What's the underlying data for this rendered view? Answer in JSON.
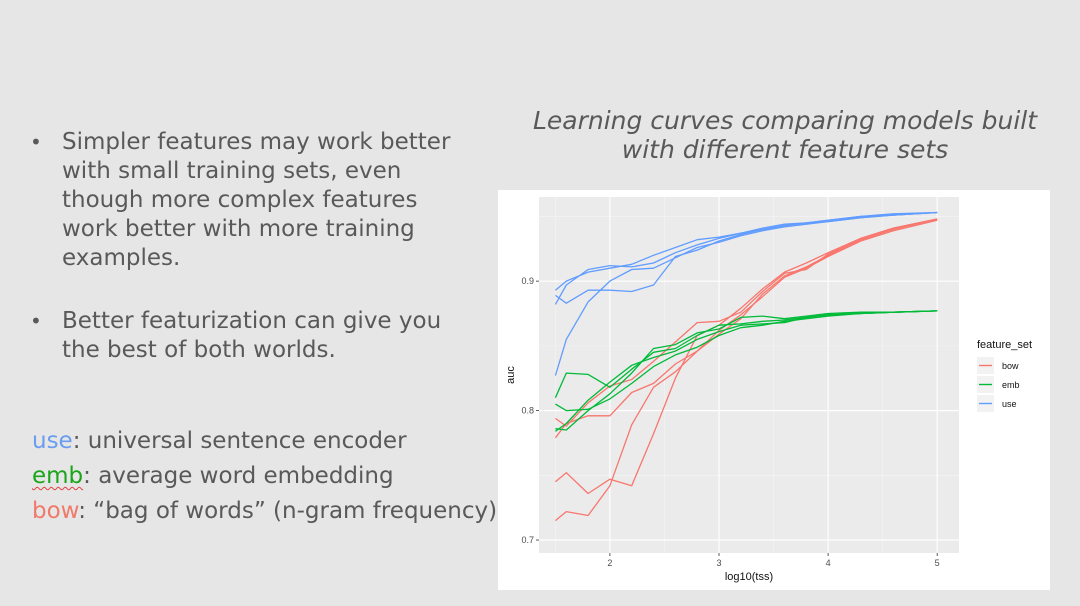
{
  "bullets": [
    "Simpler features may work better with small training sets, even though more complex features work better with more training examples.",
    "Better featurization can give you the best of both worlds."
  ],
  "bullet_glyph": "•",
  "key": [
    {
      "term": "use",
      "sep": ":",
      "desc": " universal sentence encoder",
      "color": "#6a9cf0"
    },
    {
      "term": "emb",
      "sep": ":",
      "desc": " average word embedding",
      "color": "#1aa51a"
    },
    {
      "term": "bow",
      "sep": ":",
      "desc": " “bag of words” (n-gram frequency)",
      "color": "#f07a6a"
    }
  ],
  "chart_title": "Learning curves comparing models built with different feature sets",
  "chart_data": {
    "type": "line",
    "xlabel": "log10(tss)",
    "ylabel": "auc",
    "xlim": [
      1.35,
      5.2
    ],
    "ylim": [
      0.69,
      0.965
    ],
    "xticks": [
      2,
      3,
      4,
      5
    ],
    "yticks": [
      0.7,
      0.8,
      0.9
    ],
    "ytick_labels": [
      "0.7",
      "0.8",
      "0.9"
    ],
    "grid": true,
    "legend_title": "feature_set",
    "legend_position": "right",
    "x": [
      1.5,
      1.6,
      1.8,
      2.0,
      2.2,
      2.4,
      2.6,
      2.8,
      3.0,
      3.2,
      3.4,
      3.6,
      3.8,
      4.0,
      4.3,
      4.6,
      5.0
    ],
    "series": [
      {
        "name": "bow",
        "color": "#f8766d",
        "runs": [
          [
            0.779,
            0.79,
            0.796,
            0.796,
            0.814,
            0.821,
            0.836,
            0.846,
            0.859,
            0.871,
            0.89,
            0.904,
            0.911,
            0.92,
            0.932,
            0.94,
            0.948
          ],
          [
            0.745,
            0.752,
            0.736,
            0.747,
            0.742,
            0.782,
            0.825,
            0.858,
            0.866,
            0.879,
            0.894,
            0.907,
            0.914,
            0.922,
            0.933,
            0.941,
            0.948
          ],
          [
            0.715,
            0.722,
            0.719,
            0.742,
            0.789,
            0.818,
            0.83,
            0.846,
            0.862,
            0.874,
            0.888,
            0.903,
            0.91,
            0.919,
            0.931,
            0.939,
            0.947
          ],
          [
            0.794,
            0.788,
            0.806,
            0.819,
            0.824,
            0.838,
            0.853,
            0.868,
            0.869,
            0.876,
            0.892,
            0.906,
            0.909,
            0.921,
            0.933,
            0.941,
            0.948
          ]
        ]
      },
      {
        "name": "emb",
        "color": "#00ba38",
        "runs": [
          [
            0.81,
            0.829,
            0.828,
            0.818,
            0.832,
            0.845,
            0.848,
            0.858,
            0.866,
            0.867,
            0.869,
            0.87,
            0.872,
            0.874,
            0.875,
            0.876,
            0.877
          ],
          [
            0.786,
            0.785,
            0.8,
            0.813,
            0.829,
            0.848,
            0.851,
            0.86,
            0.863,
            0.872,
            0.873,
            0.871,
            0.873,
            0.875,
            0.876,
            0.876,
            0.877
          ],
          [
            0.805,
            0.8,
            0.801,
            0.809,
            0.821,
            0.834,
            0.843,
            0.849,
            0.858,
            0.864,
            0.866,
            0.869,
            0.871,
            0.873,
            0.875,
            0.876,
            0.877
          ],
          [
            0.784,
            0.79,
            0.808,
            0.822,
            0.835,
            0.841,
            0.846,
            0.855,
            0.861,
            0.866,
            0.867,
            0.868,
            0.872,
            0.874,
            0.875,
            0.876,
            0.877
          ]
        ]
      },
      {
        "name": "use",
        "color": "#619cff",
        "runs": [
          [
            0.893,
            0.9,
            0.907,
            0.91,
            0.913,
            0.92,
            0.926,
            0.932,
            0.934,
            0.937,
            0.941,
            0.944,
            0.945,
            0.946,
            0.949,
            0.951,
            0.953
          ],
          [
            0.827,
            0.855,
            0.884,
            0.9,
            0.909,
            0.91,
            0.918,
            0.926,
            0.93,
            0.935,
            0.939,
            0.942,
            0.944,
            0.946,
            0.949,
            0.951,
            0.953
          ],
          [
            0.889,
            0.883,
            0.893,
            0.893,
            0.892,
            0.897,
            0.919,
            0.924,
            0.931,
            0.936,
            0.94,
            0.943,
            0.945,
            0.947,
            0.95,
            0.952,
            0.953
          ],
          [
            0.882,
            0.897,
            0.909,
            0.912,
            0.911,
            0.914,
            0.922,
            0.928,
            0.933,
            0.937,
            0.94,
            0.943,
            0.945,
            0.947,
            0.95,
            0.951,
            0.953
          ]
        ]
      }
    ]
  }
}
